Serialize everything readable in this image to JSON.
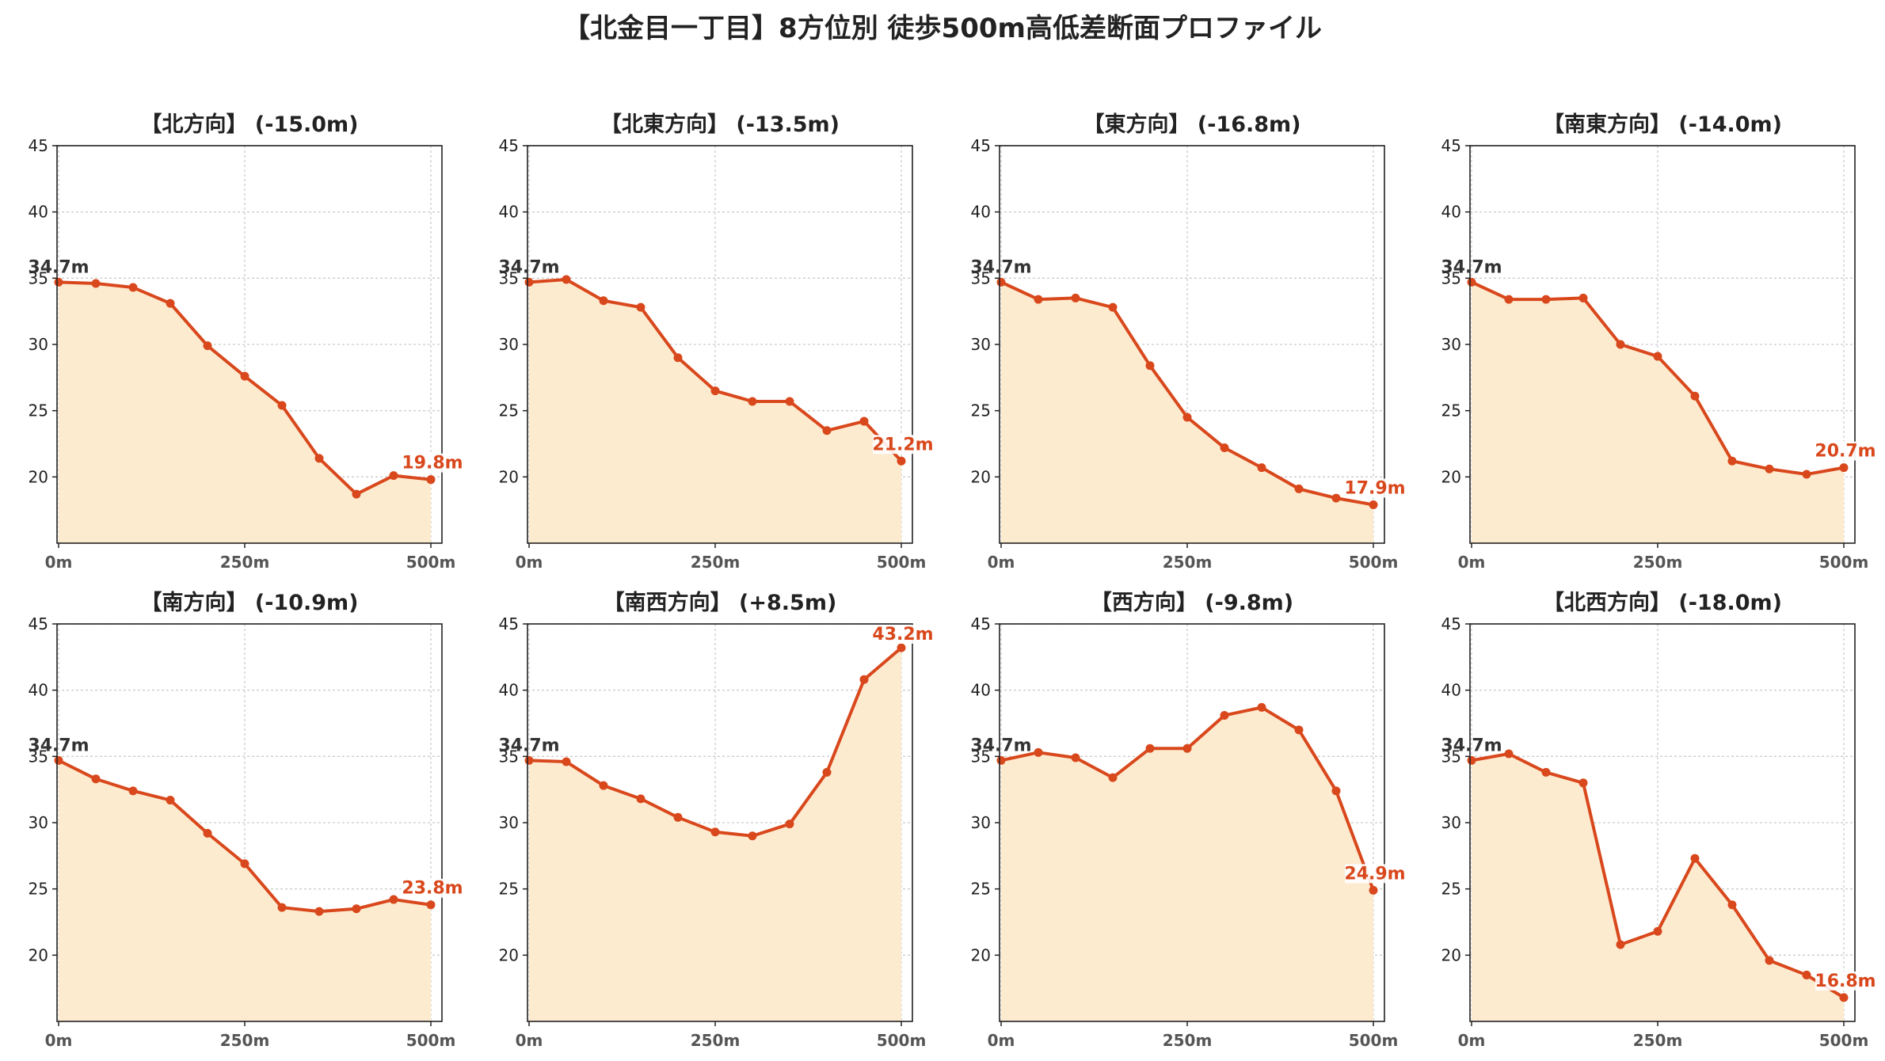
{
  "suptitle": "【北金目一丁目】8方位別 徒歩500m高低差断面プロファイル",
  "colors": {
    "line": "#d9481c",
    "fill": "#fdebd0",
    "start_label": "#333333",
    "end_label": "#d9481c"
  },
  "chart_data": [
    {
      "type": "area",
      "title": "【北方向】 (-15.0m)",
      "x": [
        0,
        50,
        100,
        150,
        200,
        250,
        300,
        350,
        400,
        450,
        500
      ],
      "values": [
        34.7,
        34.6,
        34.3,
        33.1,
        29.9,
        27.6,
        25.4,
        21.4,
        18.7,
        20.1,
        19.8
      ],
      "start_label": "34.7m",
      "end_label": "19.8m",
      "xticks": [
        "0m",
        "250m",
        "500m"
      ],
      "yticks": [
        "20",
        "25",
        "30",
        "35",
        "40",
        "45"
      ],
      "ylim": [
        15,
        45
      ],
      "xlim": [
        0,
        500
      ],
      "grid": true
    },
    {
      "type": "area",
      "title": "【北東方向】 (-13.5m)",
      "x": [
        0,
        50,
        100,
        150,
        200,
        250,
        300,
        350,
        400,
        450,
        500
      ],
      "values": [
        34.7,
        34.9,
        33.3,
        32.8,
        29.0,
        26.5,
        25.7,
        25.7,
        23.5,
        24.2,
        21.2
      ],
      "start_label": "34.7m",
      "end_label": "21.2m",
      "xticks": [
        "0m",
        "250m",
        "500m"
      ],
      "yticks": [
        "20",
        "25",
        "30",
        "35",
        "40",
        "45"
      ],
      "ylim": [
        15,
        45
      ],
      "xlim": [
        0,
        500
      ],
      "grid": true
    },
    {
      "type": "area",
      "title": "【東方向】 (-16.8m)",
      "x": [
        0,
        50,
        100,
        150,
        200,
        250,
        300,
        350,
        400,
        450,
        500
      ],
      "values": [
        34.7,
        33.4,
        33.5,
        32.8,
        28.4,
        24.5,
        22.2,
        20.7,
        19.1,
        18.4,
        17.9
      ],
      "start_label": "34.7m",
      "end_label": "17.9m",
      "xticks": [
        "0m",
        "250m",
        "500m"
      ],
      "yticks": [
        "20",
        "25",
        "30",
        "35",
        "40",
        "45"
      ],
      "ylim": [
        15,
        45
      ],
      "xlim": [
        0,
        500
      ],
      "grid": true
    },
    {
      "type": "area",
      "title": "【南東方向】 (-14.0m)",
      "x": [
        0,
        50,
        100,
        150,
        200,
        250,
        300,
        350,
        400,
        450,
        500
      ],
      "values": [
        34.7,
        33.4,
        33.4,
        33.5,
        30.0,
        29.1,
        26.1,
        21.2,
        20.6,
        20.2,
        20.7
      ],
      "start_label": "34.7m",
      "end_label": "20.7m",
      "xticks": [
        "0m",
        "250m",
        "500m"
      ],
      "yticks": [
        "20",
        "25",
        "30",
        "35",
        "40",
        "45"
      ],
      "ylim": [
        15,
        45
      ],
      "xlim": [
        0,
        500
      ],
      "grid": true
    },
    {
      "type": "area",
      "title": "【南方向】 (-10.9m)",
      "x": [
        0,
        50,
        100,
        150,
        200,
        250,
        300,
        350,
        400,
        450,
        500
      ],
      "values": [
        34.7,
        33.3,
        32.4,
        31.7,
        29.2,
        26.9,
        23.6,
        23.3,
        23.5,
        24.2,
        23.8
      ],
      "start_label": "34.7m",
      "end_label": "23.8m",
      "xticks": [
        "0m",
        "250m",
        "500m"
      ],
      "yticks": [
        "20",
        "25",
        "30",
        "35",
        "40",
        "45"
      ],
      "ylim": [
        15,
        45
      ],
      "xlim": [
        0,
        500
      ],
      "grid": true
    },
    {
      "type": "area",
      "title": "【南西方向】 (+8.5m)",
      "x": [
        0,
        50,
        100,
        150,
        200,
        250,
        300,
        350,
        400,
        450,
        500
      ],
      "values": [
        34.7,
        34.6,
        32.8,
        31.8,
        30.4,
        29.3,
        29.0,
        29.9,
        33.8,
        40.8,
        43.2
      ],
      "start_label": "34.7m",
      "end_label": "43.2m",
      "xticks": [
        "0m",
        "250m",
        "500m"
      ],
      "yticks": [
        "20",
        "25",
        "30",
        "35",
        "40",
        "45"
      ],
      "ylim": [
        15,
        45
      ],
      "xlim": [
        0,
        500
      ],
      "grid": true
    },
    {
      "type": "area",
      "title": "【西方向】 (-9.8m)",
      "x": [
        0,
        50,
        100,
        150,
        200,
        250,
        300,
        350,
        400,
        450,
        500
      ],
      "values": [
        34.7,
        35.3,
        34.9,
        33.4,
        35.6,
        35.6,
        38.1,
        38.7,
        37.0,
        32.4,
        24.9
      ],
      "start_label": "34.7m",
      "end_label": "24.9m",
      "xticks": [
        "0m",
        "250m",
        "500m"
      ],
      "yticks": [
        "20",
        "25",
        "30",
        "35",
        "40",
        "45"
      ],
      "ylim": [
        15,
        45
      ],
      "xlim": [
        0,
        500
      ],
      "grid": true
    },
    {
      "type": "area",
      "title": "【北西方向】 (-18.0m)",
      "x": [
        0,
        50,
        100,
        150,
        200,
        250,
        300,
        350,
        400,
        450,
        500
      ],
      "values": [
        34.7,
        35.2,
        33.8,
        33.0,
        20.8,
        21.8,
        27.3,
        23.8,
        19.6,
        18.5,
        16.8
      ],
      "start_label": "34.7m",
      "end_label": "16.8m",
      "xticks": [
        "0m",
        "250m",
        "500m"
      ],
      "yticks": [
        "20",
        "25",
        "30",
        "35",
        "40",
        "45"
      ],
      "ylim": [
        15,
        45
      ],
      "xlim": [
        0,
        500
      ],
      "grid": true
    }
  ]
}
